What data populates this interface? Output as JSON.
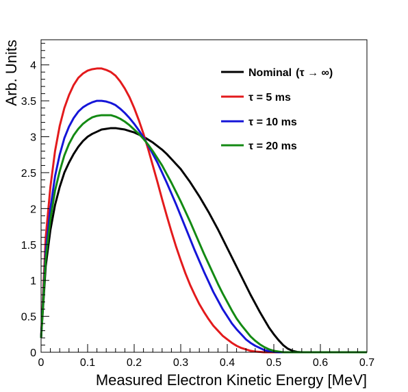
{
  "chart_data": {
    "type": "line",
    "title": "",
    "xlabel": "Measured Electron Kinetic Energy [MeV]",
    "ylabel": "Arb. Units",
    "xlim": [
      0,
      0.7
    ],
    "ylim": [
      0,
      4.35
    ],
    "grid": false,
    "legend_position": "top-right",
    "x_ticks": [
      "0",
      "0.1",
      "0.2",
      "0.3",
      "0.4",
      "0.5",
      "0.6",
      "0.7"
    ],
    "y_ticks": [
      "0",
      "0.5",
      "1",
      "1.5",
      "2",
      "2.5",
      "3",
      "3.5",
      "4"
    ],
    "x": [
      0.0,
      0.01,
      0.02,
      0.03,
      0.04,
      0.05,
      0.06,
      0.07,
      0.08,
      0.09,
      0.1,
      0.11,
      0.12,
      0.13,
      0.14,
      0.15,
      0.16,
      0.17,
      0.18,
      0.19,
      0.2,
      0.21,
      0.22,
      0.23,
      0.24,
      0.25,
      0.26,
      0.27,
      0.28,
      0.29,
      0.3,
      0.31,
      0.32,
      0.33,
      0.34,
      0.35,
      0.36,
      0.37,
      0.38,
      0.39,
      0.4,
      0.41,
      0.42,
      0.43,
      0.44,
      0.45,
      0.46,
      0.47,
      0.48,
      0.49,
      0.5,
      0.51,
      0.52,
      0.53,
      0.54,
      0.55,
      0.56,
      0.57,
      0.58,
      0.59,
      0.6,
      0.61,
      0.62,
      0.63,
      0.64,
      0.65,
      0.66,
      0.67,
      0.68,
      0.69,
      0.7
    ],
    "series": [
      {
        "name": "Nominal",
        "legend_suffix": "(τ → ∞)",
        "color": "#000000",
        "values": [
          0.2,
          1.2,
          1.7,
          2.05,
          2.3,
          2.5,
          2.64,
          2.76,
          2.86,
          2.94,
          3.0,
          3.04,
          3.07,
          3.1,
          3.11,
          3.12,
          3.12,
          3.11,
          3.1,
          3.08,
          3.06,
          3.03,
          3.0,
          2.96,
          2.92,
          2.87,
          2.82,
          2.76,
          2.69,
          2.62,
          2.55,
          2.46,
          2.37,
          2.27,
          2.17,
          2.06,
          1.95,
          1.83,
          1.71,
          1.58,
          1.45,
          1.32,
          1.19,
          1.06,
          0.93,
          0.8,
          0.68,
          0.56,
          0.45,
          0.34,
          0.25,
          0.17,
          0.1,
          0.05,
          0.02,
          0.005,
          0.0,
          0.0,
          0.0,
          0.0,
          0.0,
          0.0,
          0.0,
          0.0,
          0.0,
          0.0,
          0.0,
          0.0,
          0.0,
          0.0,
          0.0
        ]
      },
      {
        "name": "τ = 5 ms",
        "color": "#e31a1c",
        "values": [
          0.2,
          1.6,
          2.3,
          2.8,
          3.15,
          3.4,
          3.58,
          3.72,
          3.82,
          3.88,
          3.92,
          3.94,
          3.95,
          3.95,
          3.93,
          3.9,
          3.85,
          3.77,
          3.67,
          3.55,
          3.4,
          3.23,
          3.04,
          2.83,
          2.6,
          2.37,
          2.13,
          1.9,
          1.68,
          1.47,
          1.28,
          1.1,
          0.94,
          0.8,
          0.67,
          0.56,
          0.46,
          0.37,
          0.3,
          0.23,
          0.18,
          0.13,
          0.09,
          0.06,
          0.04,
          0.02,
          0.01,
          0.005,
          0.0,
          0.0,
          0.0,
          0.0,
          0.0,
          0.0,
          0.0,
          0.0,
          0.0,
          0.0,
          0.0,
          0.0,
          0.0,
          0.0,
          0.0,
          0.0,
          0.0,
          0.0,
          0.0,
          0.0,
          0.0,
          0.0,
          0.0
        ]
      },
      {
        "name": "τ = 10 ms",
        "color": "#1515d8",
        "values": [
          0.2,
          1.4,
          2.0,
          2.45,
          2.75,
          2.98,
          3.14,
          3.26,
          3.35,
          3.41,
          3.45,
          3.48,
          3.5,
          3.5,
          3.49,
          3.47,
          3.44,
          3.39,
          3.33,
          3.26,
          3.18,
          3.09,
          2.99,
          2.88,
          2.76,
          2.64,
          2.5,
          2.36,
          2.21,
          2.06,
          1.9,
          1.74,
          1.58,
          1.42,
          1.27,
          1.12,
          0.98,
          0.84,
          0.72,
          0.6,
          0.5,
          0.4,
          0.32,
          0.25,
          0.18,
          0.13,
          0.09,
          0.06,
          0.03,
          0.015,
          0.005,
          0.0,
          0.0,
          0.0,
          0.0,
          0.0,
          0.0,
          0.0,
          0.0,
          0.0,
          0.0,
          0.0,
          0.0,
          0.0,
          0.0,
          0.0,
          0.0,
          0.0,
          0.0,
          0.0,
          0.0
        ]
      },
      {
        "name": "τ = 20 ms",
        "color": "#138a13",
        "values": [
          0.2,
          1.3,
          1.85,
          2.25,
          2.52,
          2.74,
          2.9,
          3.02,
          3.11,
          3.18,
          3.23,
          3.27,
          3.29,
          3.3,
          3.3,
          3.3,
          3.28,
          3.25,
          3.21,
          3.16,
          3.1,
          3.04,
          2.97,
          2.89,
          2.8,
          2.7,
          2.6,
          2.48,
          2.36,
          2.23,
          2.1,
          1.96,
          1.82,
          1.67,
          1.52,
          1.37,
          1.23,
          1.09,
          0.95,
          0.82,
          0.7,
          0.58,
          0.47,
          0.38,
          0.3,
          0.22,
          0.16,
          0.11,
          0.07,
          0.04,
          0.02,
          0.01,
          0.0,
          0.0,
          0.0,
          0.0,
          0.0,
          0.0,
          0.0,
          0.0,
          0.0,
          0.0,
          0.0,
          0.0,
          0.0,
          0.0,
          0.0,
          0.0,
          0.0,
          0.0,
          0.0
        ]
      }
    ]
  }
}
